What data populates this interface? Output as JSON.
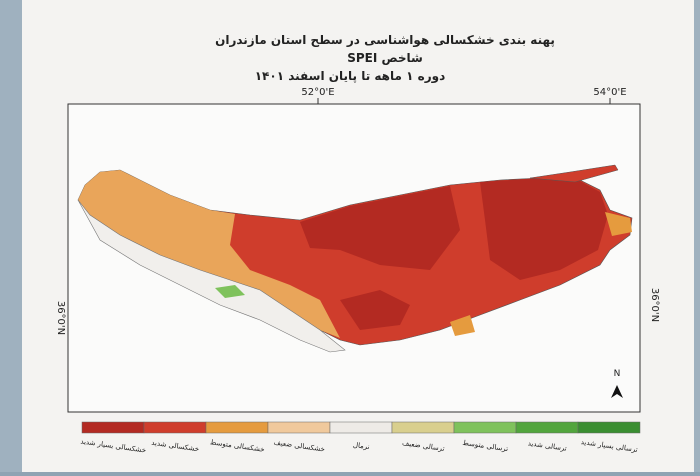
{
  "header": {
    "title": "پهنه بندی خشکسالی هواشناسی در سطح استان مازندران",
    "subtitle": "شاخص SPEI",
    "period": "دوره ۱ ماهه تا پایان اسفند ۱۴۰۱"
  },
  "map": {
    "lon_labels": [
      "52°0'E",
      "54°0'E"
    ],
    "lat_labels": [
      "36°0'N",
      "36°0'N"
    ],
    "north": "N"
  },
  "legend": {
    "items": [
      {
        "label": "خشکسالی بسیار شدید",
        "color": "#b32a22"
      },
      {
        "label": "خشکسالی شدید",
        "color": "#cf3d2c"
      },
      {
        "label": "خشکسالی متوسط",
        "color": "#e59b3e"
      },
      {
        "label": "خشکسالی ضعیف",
        "color": "#f0c99c"
      },
      {
        "label": "نرمال",
        "color": "#eeebe7"
      },
      {
        "label": "ترسالی ضعیف",
        "color": "#d9cf8e"
      },
      {
        "label": "ترسالی متوسط",
        "color": "#7fc25c"
      },
      {
        "label": "ترسالی شدید",
        "color": "#52a53d"
      },
      {
        "label": "ترسالی بسیار شدید",
        "color": "#3a8e31"
      }
    ]
  }
}
